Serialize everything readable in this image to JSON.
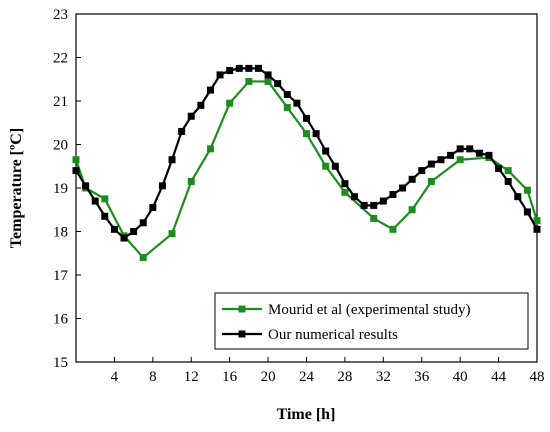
{
  "chart_data": {
    "type": "line",
    "xlabel": "Time [h]",
    "ylabel": "Temperature [ºC]",
    "xlim": [
      0,
      48
    ],
    "ylim": [
      15,
      23
    ],
    "xticks": [
      4,
      8,
      12,
      16,
      20,
      24,
      28,
      32,
      36,
      40,
      44,
      48
    ],
    "yticks": [
      15,
      16,
      17,
      18,
      19,
      20,
      21,
      22,
      23
    ],
    "grid": false,
    "legend_position": "bottom-right",
    "series": [
      {
        "name": "Mourid et al (experimental study)",
        "color": "#1e8c1e",
        "marker": "square",
        "x": [
          0,
          1,
          3,
          5,
          7,
          10,
          12,
          14,
          16,
          18,
          20,
          22,
          24,
          26,
          28,
          31,
          33,
          35,
          37,
          40,
          43,
          45,
          47,
          48
        ],
        "y": [
          19.65,
          19.0,
          18.75,
          17.9,
          17.4,
          17.95,
          19.15,
          19.9,
          20.95,
          21.45,
          21.45,
          20.85,
          20.25,
          19.5,
          18.9,
          18.3,
          18.05,
          18.5,
          19.15,
          19.65,
          19.7,
          19.4,
          18.95,
          18.25
        ]
      },
      {
        "name": "Our numerical results",
        "color": "#000000",
        "marker": "square",
        "x": [
          0,
          1,
          2,
          3,
          4,
          5,
          6,
          7,
          8,
          9,
          10,
          11,
          12,
          13,
          14,
          15,
          16,
          17,
          18,
          19,
          20,
          21,
          22,
          23,
          24,
          25,
          26,
          27,
          28,
          29,
          30,
          31,
          32,
          33,
          34,
          35,
          36,
          37,
          38,
          39,
          40,
          41,
          42,
          43,
          44,
          45,
          46,
          47,
          48
        ],
        "y": [
          19.4,
          19.05,
          18.7,
          18.35,
          18.05,
          17.85,
          18.0,
          18.2,
          18.55,
          19.05,
          19.65,
          20.3,
          20.65,
          20.9,
          21.25,
          21.6,
          21.7,
          21.75,
          21.75,
          21.75,
          21.6,
          21.4,
          21.15,
          20.95,
          20.6,
          20.25,
          19.85,
          19.5,
          19.1,
          18.8,
          18.6,
          18.6,
          18.7,
          18.85,
          19.0,
          19.2,
          19.4,
          19.55,
          19.65,
          19.75,
          19.9,
          19.9,
          19.8,
          19.75,
          19.45,
          19.15,
          18.8,
          18.45,
          18.05
        ]
      }
    ]
  }
}
